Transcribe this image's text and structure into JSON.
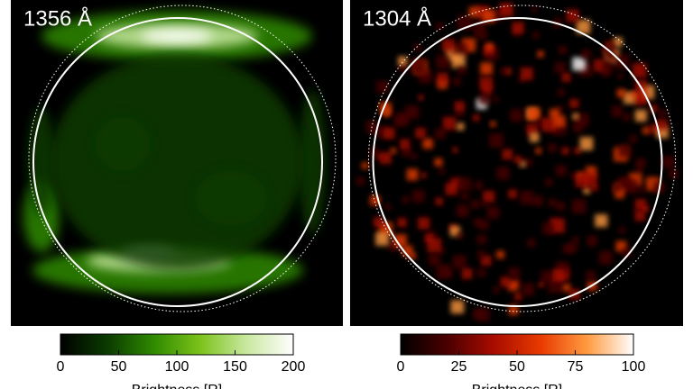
{
  "chart_data": [
    {
      "type": "image",
      "title": "1356 Å",
      "colormap": [
        "#000000",
        "#0a3a00",
        "#2f8a00",
        "#7cc21a",
        "#c9e8a0",
        "#ffffff"
      ],
      "xlim": [
        0,
        200
      ],
      "xticks": [
        0,
        50,
        100,
        150,
        200
      ],
      "xlabel": "Brightness [R]"
    },
    {
      "type": "image",
      "title": "1304 Å",
      "colormap": [
        "#000000",
        "#4a0000",
        "#a80c00",
        "#e83a00",
        "#ff9a40",
        "#ffffff"
      ],
      "xlim": [
        0,
        100
      ],
      "xticks": [
        0,
        25,
        50,
        75,
        100
      ],
      "xlabel": "Brightness [R]"
    }
  ]
}
